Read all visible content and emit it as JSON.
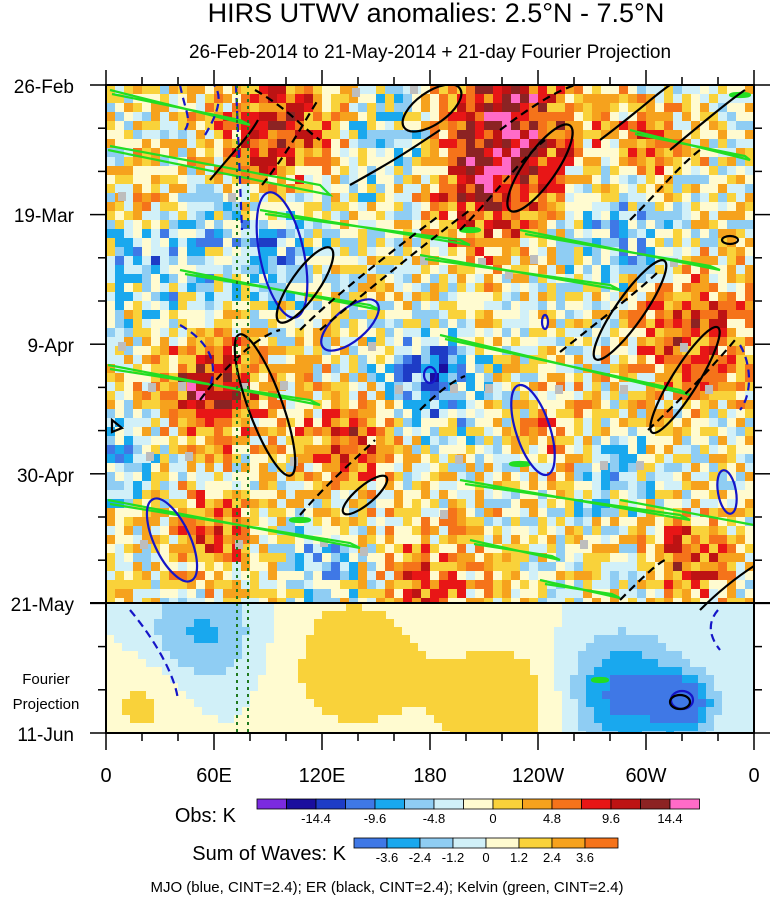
{
  "chart_data": {
    "type": "heatmap",
    "title": "HIRS UTWV anomalies: 2.5°N - 7.5°N",
    "subtitle": "26-Feb-2014 to 21-May-2014 + 21-day Fourier Projection",
    "x_tick_labels": [
      "0",
      "60E",
      "120E",
      "180",
      "120W",
      "60W",
      "0"
    ],
    "y_tick_labels": [
      "26-Feb",
      "19-Mar",
      "9-Apr",
      "30-Apr",
      "21-May",
      "11-Jun"
    ],
    "y_annotation": [
      "Fourier",
      "Projection"
    ],
    "observation_end": "21-May",
    "obs_colorbar": {
      "title": "Obs: K",
      "labels": [
        "-14.4",
        "-9.6",
        "-4.8",
        "0",
        "4.8",
        "9.6",
        "14.4"
      ],
      "colors": [
        "#7b2be0",
        "#1a0e9e",
        "#1e3cc6",
        "#3f78e6",
        "#19a8ee",
        "#8fcdf3",
        "#d1f0f8",
        "#fffbd0",
        "#f9d23a",
        "#f6a21d",
        "#f5731a",
        "#e81616",
        "#bd1313",
        "#8c2323",
        "#ff6bc8"
      ]
    },
    "waves_colorbar": {
      "title": "Sum of Waves: K",
      "labels": [
        "-3.6",
        "-2.4",
        "-1.2",
        "0",
        "1.2",
        "2.4",
        "3.6"
      ],
      "colors": [
        "#3f78e6",
        "#19a8ee",
        "#8fcdf3",
        "#d1f0f8",
        "#fffbd0",
        "#f9d23a",
        "#f6a21d",
        "#f5731a"
      ]
    },
    "legend_caption": "MJO (blue, CINT=2.4); ER (black, CINT=2.4); Kelvin (green, CINT=2.4)",
    "series": [
      {
        "name": "MJO",
        "color": "blue",
        "cint": 2.4
      },
      {
        "name": "ER",
        "color": "black",
        "cint": 2.4
      },
      {
        "name": "Kelvin",
        "color": "green",
        "cint": 2.4
      }
    ]
  },
  "colors": {
    "mjo": "#1515c8",
    "er": "#000000",
    "kelvin": "#22dd22",
    "gray_missing": "#bdbdbd",
    "reference_lines": "#1f7a1f"
  }
}
